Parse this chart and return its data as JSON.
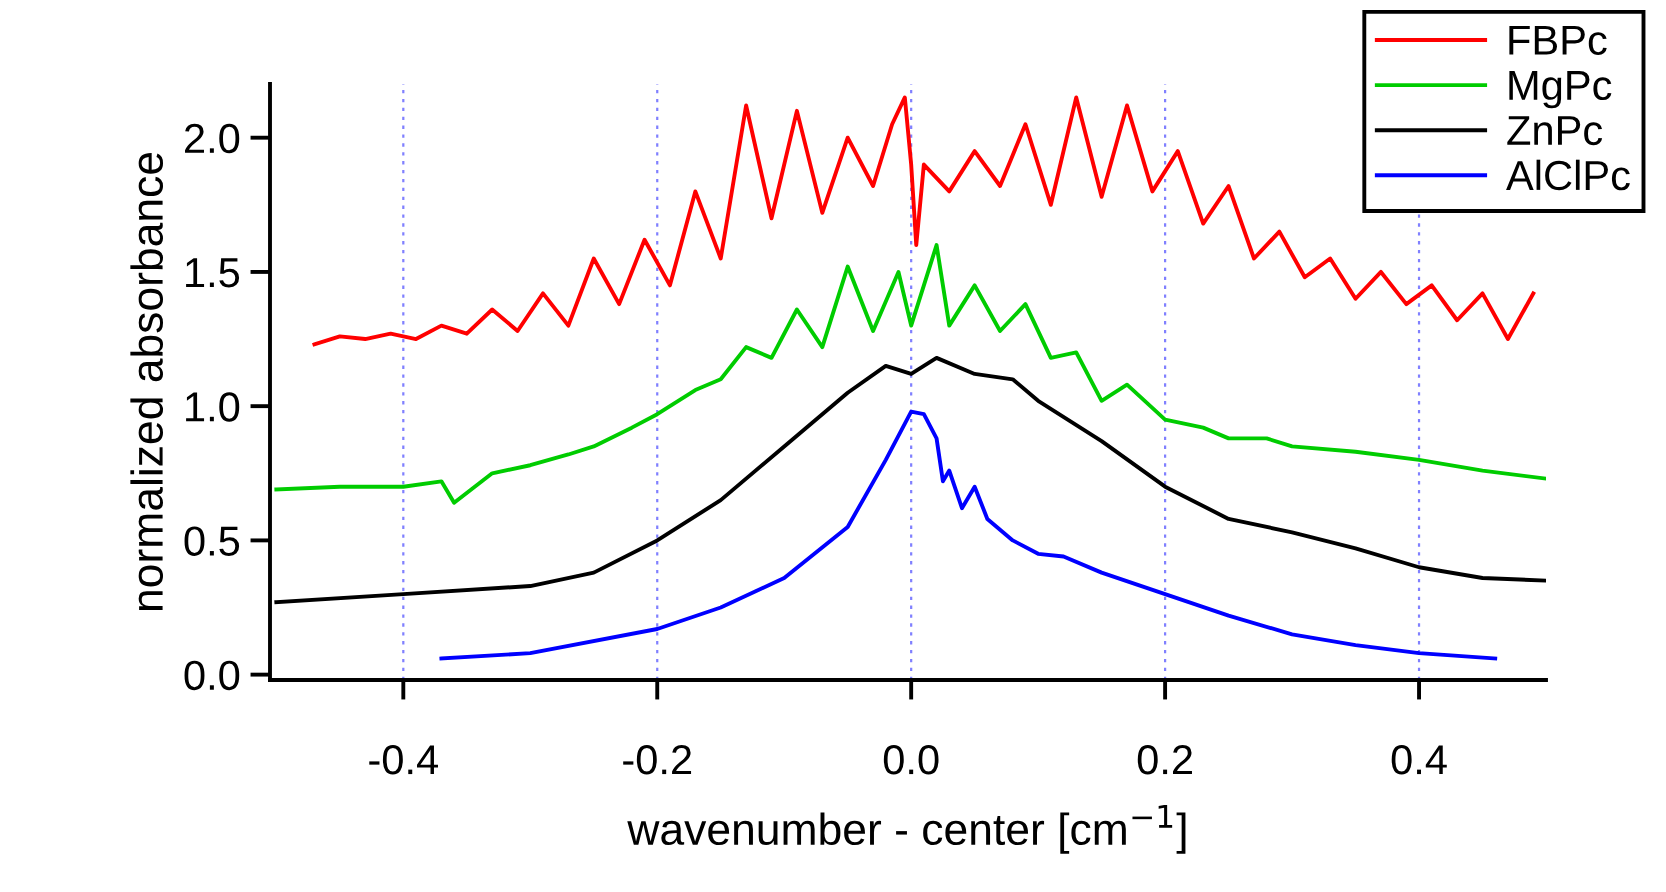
{
  "chart_data": {
    "type": "line",
    "xlabel": "wavenumber - center [cm$^{−1}$]",
    "ylabel": "normalized absorbance",
    "xlim": [
      -0.505,
      0.5
    ],
    "ylim": [
      -0.02,
      2.2
    ],
    "xticks": [
      -0.4,
      -0.2,
      {
        "value": 0,
        "label": "0.0"
      },
      0.2,
      0.4
    ],
    "yticks": [
      {
        "value": 0,
        "label": "0.0"
      },
      0.5,
      {
        "value": 1,
        "label": "1.0"
      },
      1.5,
      {
        "value": 2,
        "label": "2.0"
      }
    ],
    "grid": "x",
    "legend": "top right",
    "line_style": "solid",
    "marker": "none",
    "series": [
      {
        "name": "FBPc",
        "color": "#ff0000",
        "x": [
          -0.47,
          -0.45,
          -0.43,
          -0.41,
          -0.39,
          -0.37,
          -0.35,
          -0.33,
          -0.31,
          -0.29,
          -0.27,
          -0.25,
          -0.23,
          -0.21,
          -0.19,
          -0.17,
          -0.15,
          -0.13,
          -0.11,
          -0.09,
          -0.07,
          -0.05,
          -0.03,
          -0.015,
          -0.005,
          0.0,
          0.004,
          0.01,
          0.03,
          0.05,
          0.07,
          0.09,
          0.11,
          0.13,
          0.15,
          0.17,
          0.19,
          0.21,
          0.23,
          0.25,
          0.27,
          0.29,
          0.31,
          0.33,
          0.35,
          0.37,
          0.39,
          0.41,
          0.43,
          0.45,
          0.47,
          0.49
        ],
        "values": [
          1.23,
          1.26,
          1.25,
          1.27,
          1.25,
          1.3,
          1.27,
          1.36,
          1.28,
          1.42,
          1.3,
          1.55,
          1.38,
          1.62,
          1.45,
          1.8,
          1.55,
          2.12,
          1.7,
          2.1,
          1.72,
          2.0,
          1.82,
          2.05,
          2.15,
          1.9,
          1.6,
          1.9,
          1.8,
          1.95,
          1.82,
          2.05,
          1.75,
          2.15,
          1.78,
          2.12,
          1.8,
          1.95,
          1.68,
          1.82,
          1.55,
          1.65,
          1.48,
          1.55,
          1.4,
          1.5,
          1.38,
          1.45,
          1.32,
          1.42,
          1.25,
          1.42
        ]
      },
      {
        "name": "MgPc",
        "color": "#00cc00",
        "x": [
          -0.5,
          -0.45,
          -0.4,
          -0.37,
          -0.36,
          -0.33,
          -0.3,
          -0.27,
          -0.25,
          -0.22,
          -0.2,
          -0.17,
          -0.15,
          -0.13,
          -0.11,
          -0.09,
          -0.07,
          -0.05,
          -0.03,
          -0.01,
          0.0,
          0.01,
          0.02,
          0.03,
          0.05,
          0.07,
          0.09,
          0.11,
          0.13,
          0.15,
          0.17,
          0.2,
          0.23,
          0.25,
          0.28,
          0.3,
          0.35,
          0.4,
          0.45,
          0.5
        ],
        "values": [
          0.69,
          0.7,
          0.7,
          0.72,
          0.64,
          0.75,
          0.78,
          0.82,
          0.85,
          0.92,
          0.97,
          1.06,
          1.1,
          1.22,
          1.18,
          1.36,
          1.22,
          1.52,
          1.28,
          1.5,
          1.3,
          1.45,
          1.6,
          1.3,
          1.45,
          1.28,
          1.38,
          1.18,
          1.2,
          1.02,
          1.08,
          0.95,
          0.92,
          0.88,
          0.88,
          0.85,
          0.83,
          0.8,
          0.76,
          0.73
        ]
      },
      {
        "name": "ZnPc",
        "color": "#000000",
        "x": [
          -0.5,
          -0.4,
          -0.3,
          -0.25,
          -0.2,
          -0.15,
          -0.1,
          -0.05,
          -0.02,
          0.0,
          0.02,
          0.05,
          0.08,
          0.1,
          0.15,
          0.2,
          0.25,
          0.3,
          0.35,
          0.4,
          0.45,
          0.5
        ],
        "values": [
          0.27,
          0.3,
          0.33,
          0.38,
          0.5,
          0.65,
          0.85,
          1.05,
          1.15,
          1.12,
          1.18,
          1.12,
          1.1,
          1.02,
          0.87,
          0.7,
          0.58,
          0.53,
          0.47,
          0.4,
          0.36,
          0.35
        ]
      },
      {
        "name": "AlClPc",
        "color": "#0000ff",
        "x": [
          -0.37,
          -0.3,
          -0.2,
          -0.15,
          -0.1,
          -0.05,
          -0.02,
          0.0,
          0.01,
          0.02,
          0.025,
          0.03,
          0.04,
          0.05,
          0.06,
          0.08,
          0.1,
          0.12,
          0.15,
          0.2,
          0.25,
          0.3,
          0.35,
          0.4,
          0.46
        ],
        "values": [
          0.06,
          0.08,
          0.17,
          0.25,
          0.36,
          0.55,
          0.8,
          0.98,
          0.97,
          0.88,
          0.72,
          0.76,
          0.62,
          0.7,
          0.58,
          0.5,
          0.45,
          0.44,
          0.38,
          0.3,
          0.22,
          0.15,
          0.11,
          0.08,
          0.06
        ]
      }
    ]
  }
}
